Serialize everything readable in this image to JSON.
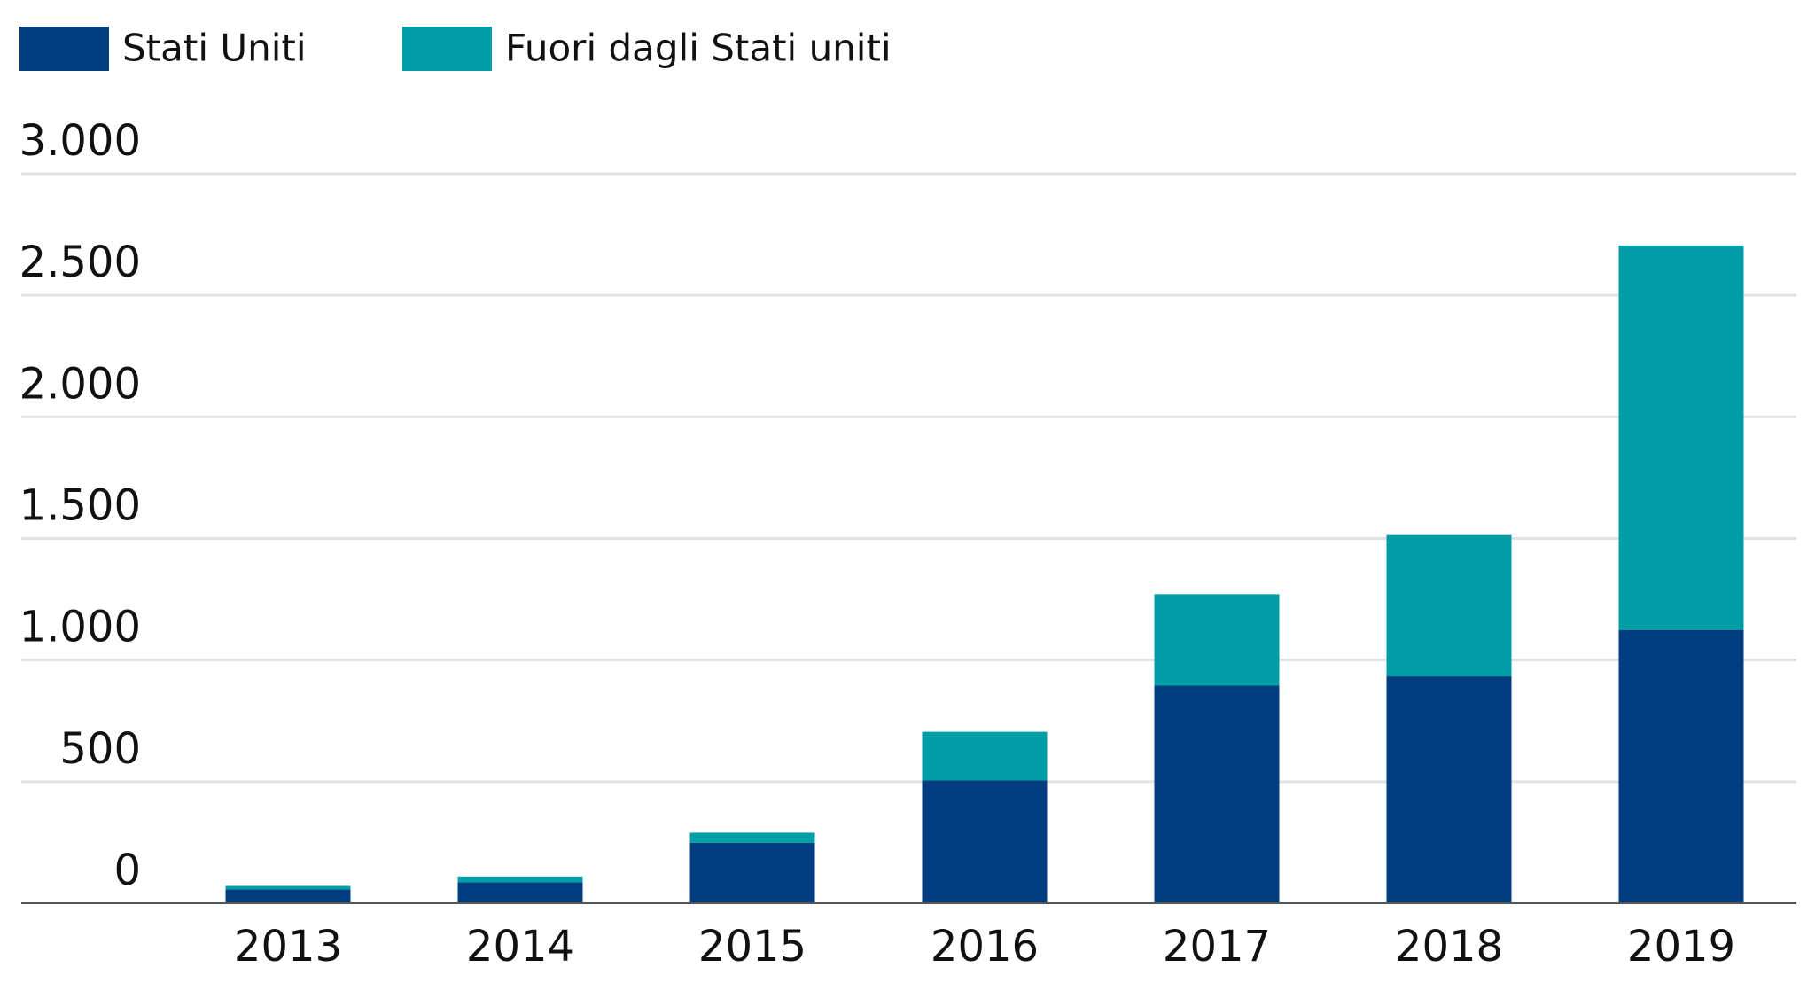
{
  "chart_data": {
    "type": "stacked_bar",
    "categories": [
      "2013",
      "2014",
      "2015",
      "2016",
      "2017",
      "2018",
      "2019"
    ],
    "series": [
      {
        "name": "Stati Uniti",
        "color": "#023e7f",
        "values": [
          57,
          86,
          248,
          505,
          895,
          933,
          1124
        ]
      },
      {
        "name": "Fuori dagli Stati uniti",
        "color": "#029ea8",
        "values": [
          14,
          24,
          42,
          200,
          376,
          581,
          1581
        ]
      }
    ],
    "ylim": [
      0,
      3000
    ],
    "yticks": [
      0,
      500,
      {
        "value": 1000,
        "label": "1.000"
      },
      {
        "value": 1500,
        "label": "1.500"
      },
      {
        "value": 2000,
        "label": "2.000"
      },
      {
        "value": 2500,
        "label": "2.500"
      },
      {
        "value": 3000,
        "label": "3.000"
      }
    ],
    "grid": true
  }
}
